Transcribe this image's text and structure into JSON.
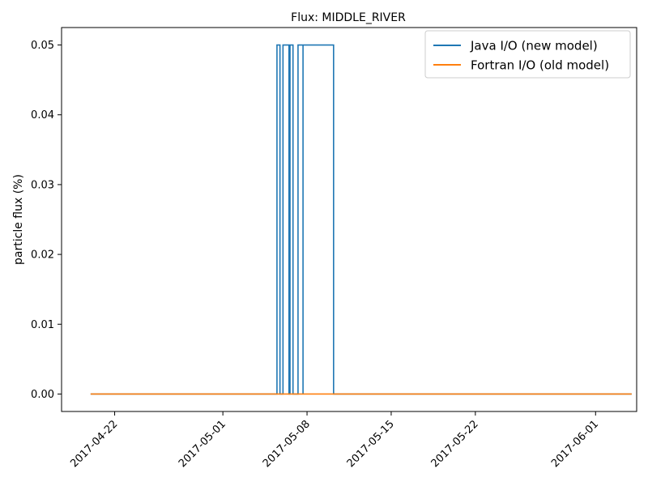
{
  "chart_data": {
    "type": "line",
    "title": "Flux: MIDDLE_RIVER",
    "xlabel": "",
    "ylabel": "particle flux (%)",
    "x_type": "date",
    "xlim": [
      "2017-04-17T14:00",
      "2017-06-04T10:00"
    ],
    "ylim": [
      -0.0025,
      0.0525
    ],
    "x_ticks": [
      "2017-04-22",
      "2017-05-01",
      "2017-05-08",
      "2017-05-15",
      "2017-05-22",
      "2017-06-01"
    ],
    "y_ticks": [
      "0.00",
      "0.01",
      "0.02",
      "0.03",
      "0.04",
      "0.05"
    ],
    "grid": false,
    "legend_position": "top-right",
    "series": [
      {
        "name": "Java I/O (new model)",
        "color": "#1f77b4",
        "step": true,
        "points": [
          [
            "2017-04-20T00:00",
            0
          ],
          [
            "2017-05-05T12:00",
            0
          ],
          [
            "2017-05-05T12:00",
            0.05
          ],
          [
            "2017-05-05T18:00",
            0.05
          ],
          [
            "2017-05-05T18:00",
            0
          ],
          [
            "2017-05-06T00:00",
            0
          ],
          [
            "2017-05-06T00:00",
            0.05
          ],
          [
            "2017-05-06T12:00",
            0.05
          ],
          [
            "2017-05-06T12:00",
            0
          ],
          [
            "2017-05-06T14:00",
            0
          ],
          [
            "2017-05-06T14:00",
            0.05
          ],
          [
            "2017-05-06T20:00",
            0.05
          ],
          [
            "2017-05-06T20:00",
            0
          ],
          [
            "2017-05-07T06:00",
            0
          ],
          [
            "2017-05-07T06:00",
            0.05
          ],
          [
            "2017-05-07T16:00",
            0.05
          ],
          [
            "2017-05-07T16:00",
            0
          ],
          [
            "2017-05-07T16:00",
            0.05
          ],
          [
            "2017-05-10T05:00",
            0.05
          ],
          [
            "2017-05-10T05:00",
            0
          ],
          [
            "2017-06-04T00:00",
            0
          ]
        ]
      },
      {
        "name": "Fortran I/O (old model)",
        "color": "#ff7f0e",
        "step": false,
        "points": [
          [
            "2017-04-20T00:00",
            0
          ],
          [
            "2017-06-04T00:00",
            0
          ]
        ]
      }
    ]
  }
}
